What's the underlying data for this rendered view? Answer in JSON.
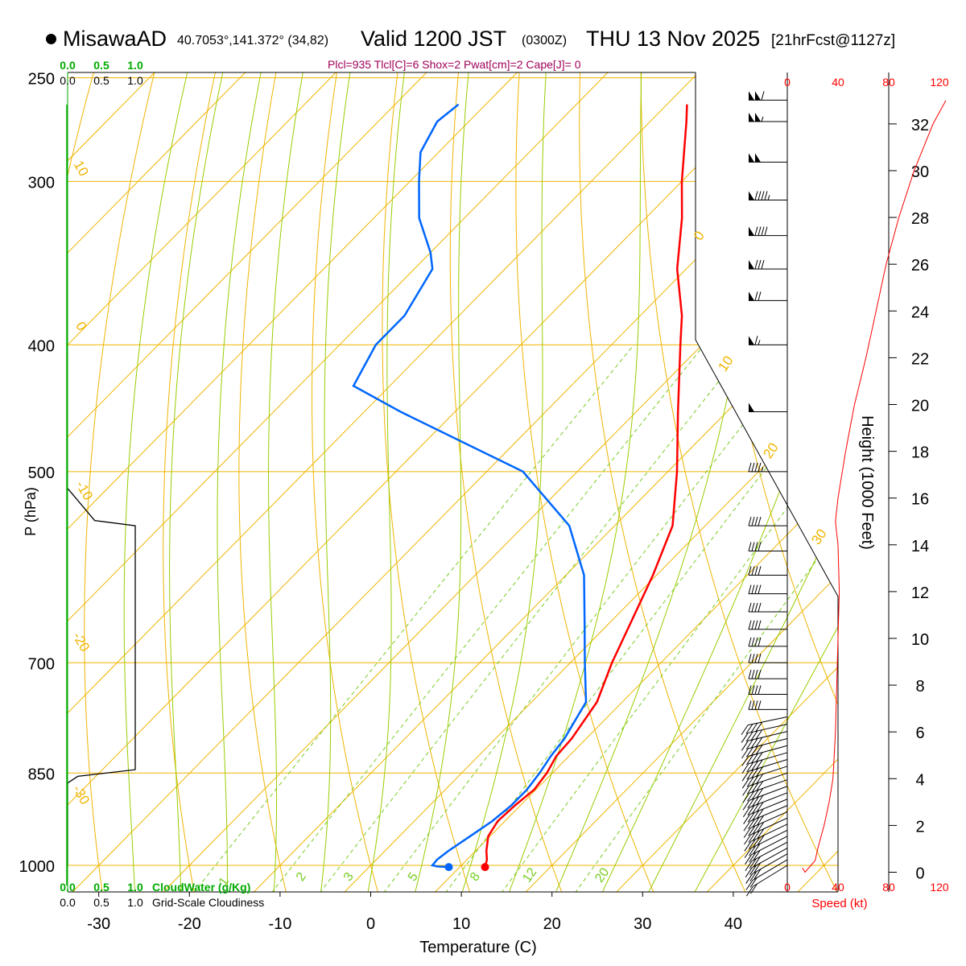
{
  "header": {
    "station": "MisawaAD",
    "coords": "40.7053°,141.372° (34,82)",
    "valid_main": "Valid 1200 JST",
    "valid_z": "(0300Z)",
    "valid_date": "THU 13 Nov 2025",
    "forecast": "[21hrFcst@1127z]",
    "indices": "Plcl=935 Tlcl[C]=6 Shox=2 Pwat[cm]=2 Cape[J]= 0"
  },
  "colors": {
    "temperature": "#ff0000",
    "dewpoint": "#0066ff",
    "isotherm": "#f0b400",
    "dry_adiabat": "#f0b400",
    "moist_adiabat": "#99cc00",
    "mixing_ratio": "#77cc22",
    "cloud_water": "#00aa00",
    "speed": "#ff0000",
    "cloudiness": "#000000"
  },
  "chart_data": {
    "type": "skew-t",
    "title": "MisawaAD Valid 1200 JST THU 13 Nov 2025",
    "xlabel": "Temperature (C)",
    "ylabel": "P (hPa)",
    "right_axis_label": "Height (1000 Feet)",
    "pressure_ticks": [
      250,
      300,
      400,
      500,
      700,
      850,
      1000
    ],
    "temperature_ticks": [
      -30,
      -20,
      -10,
      0,
      10,
      20,
      30,
      40
    ],
    "height_ticks_kft": [
      0,
      2,
      4,
      6,
      8,
      10,
      12,
      14,
      16,
      18,
      20,
      22,
      24,
      26,
      28,
      30,
      32
    ],
    "speed_ticks_kt": [
      0,
      40,
      80,
      120
    ],
    "speed_axis_label": "Speed (kt)",
    "cloud_water_ticks": [
      "0.0",
      "0.5",
      "1.0"
    ],
    "cloud_water_label": "CloudWater (g/Kg)",
    "cloudiness_ticks": [
      "0.0",
      "0.5",
      "1.0"
    ],
    "cloudiness_label": "Grid-Scale Cloudiness",
    "isotherm_labels": [
      10,
      0,
      10,
      20,
      30,
      0,
      -10,
      -20,
      -30
    ],
    "mixing_ratio_labels": [
      1,
      2,
      3,
      5,
      8,
      12,
      20
    ],
    "temperature_profile": [
      {
        "p": 1003,
        "t": 12.8
      },
      {
        "p": 990,
        "t": 12.2
      },
      {
        "p": 975,
        "t": 11.2
      },
      {
        "p": 950,
        "t": 9.8
      },
      {
        "p": 925,
        "t": 9.2
      },
      {
        "p": 900,
        "t": 9.4
      },
      {
        "p": 875,
        "t": 9.8
      },
      {
        "p": 850,
        "t": 9.4
      },
      {
        "p": 825,
        "t": 8.6
      },
      {
        "p": 800,
        "t": 8.4
      },
      {
        "p": 750,
        "t": 7.2
      },
      {
        "p": 700,
        "t": 4.6
      },
      {
        "p": 650,
        "t": 2.2
      },
      {
        "p": 600,
        "t": -0.4
      },
      {
        "p": 550,
        "t": -3.6
      },
      {
        "p": 500,
        "t": -9.0
      },
      {
        "p": 450,
        "t": -15.4
      },
      {
        "p": 400,
        "t": -22.4
      },
      {
        "p": 380,
        "t": -25.4
      },
      {
        "p": 350,
        "t": -31.0
      },
      {
        "p": 320,
        "t": -36.0
      },
      {
        "p": 300,
        "t": -40.0
      },
      {
        "p": 270,
        "t": -46.0
      },
      {
        "p": 262,
        "t": -47.8
      }
    ],
    "dewpoint_profile": [
      {
        "p": 1003,
        "t": 8.8
      },
      {
        "p": 1002,
        "t": 7.5
      },
      {
        "p": 1000,
        "t": 6.8
      },
      {
        "p": 990,
        "t": 6.7
      },
      {
        "p": 975,
        "t": 7.0
      },
      {
        "p": 950,
        "t": 7.8
      },
      {
        "p": 925,
        "t": 8.6
      },
      {
        "p": 900,
        "t": 9.0
      },
      {
        "p": 875,
        "t": 9.0
      },
      {
        "p": 850,
        "t": 8.6
      },
      {
        "p": 825,
        "t": 8.0
      },
      {
        "p": 800,
        "t": 7.6
      },
      {
        "p": 750,
        "t": 6.0
      },
      {
        "p": 700,
        "t": 1.6
      },
      {
        "p": 650,
        "t": -3.0
      },
      {
        "p": 600,
        "t": -8.0
      },
      {
        "p": 550,
        "t": -15.0
      },
      {
        "p": 500,
        "t": -26.0
      },
      {
        "p": 450,
        "t": -46.0
      },
      {
        "p": 430,
        "t": -54.0
      },
      {
        "p": 400,
        "t": -56.0
      },
      {
        "p": 380,
        "t": -56.0
      },
      {
        "p": 350,
        "t": -58.0
      },
      {
        "p": 340,
        "t": -60.0
      },
      {
        "p": 320,
        "t": -65.0
      },
      {
        "p": 300,
        "t": -69.0
      },
      {
        "p": 285,
        "t": -72.0
      },
      {
        "p": 270,
        "t": -73.5
      },
      {
        "p": 262,
        "t": -73.0
      }
    ],
    "wind_speed_profile_kt": [
      {
        "kft": 0.0,
        "s": 14
      },
      {
        "kft": 0.5,
        "s": 22
      },
      {
        "kft": 1.0,
        "s": 24
      },
      {
        "kft": 2.0,
        "s": 29
      },
      {
        "kft": 3.0,
        "s": 33
      },
      {
        "kft": 4.0,
        "s": 36
      },
      {
        "kft": 5.0,
        "s": 37
      },
      {
        "kft": 6.0,
        "s": 38
      },
      {
        "kft": 8.0,
        "s": 39
      },
      {
        "kft": 10.0,
        "s": 40
      },
      {
        "kft": 12.0,
        "s": 41
      },
      {
        "kft": 14.0,
        "s": 40
      },
      {
        "kft": 15.0,
        "s": 38
      },
      {
        "kft": 16.0,
        "s": 40
      },
      {
        "kft": 18.0,
        "s": 46
      },
      {
        "kft": 20.0,
        "s": 53
      },
      {
        "kft": 22.0,
        "s": 62
      },
      {
        "kft": 24.0,
        "s": 70
      },
      {
        "kft": 26.0,
        "s": 78
      },
      {
        "kft": 28.0,
        "s": 88
      },
      {
        "kft": 30.0,
        "s": 100
      },
      {
        "kft": 32.0,
        "s": 115
      },
      {
        "kft": 33.0,
        "s": 125
      }
    ],
    "cloudiness_profile": [
      {
        "p": 1000,
        "c": 0.0
      },
      {
        "p": 865,
        "c": 0.0
      },
      {
        "p": 855,
        "c": 0.15
      },
      {
        "p": 845,
        "c": 1.0
      },
      {
        "p": 550,
        "c": 1.0
      },
      {
        "p": 545,
        "c": 0.4
      },
      {
        "p": 515,
        "c": 0.0
      }
    ],
    "wind_barbs": [
      {
        "p": 1000,
        "kt": 20
      },
      {
        "p": 990,
        "kt": 22
      },
      {
        "p": 980,
        "kt": 25
      },
      {
        "p": 970,
        "kt": 25
      },
      {
        "p": 960,
        "kt": 30
      },
      {
        "p": 950,
        "kt": 30
      },
      {
        "p": 940,
        "kt": 30
      },
      {
        "p": 930,
        "kt": 35
      },
      {
        "p": 920,
        "kt": 35
      },
      {
        "p": 910,
        "kt": 35
      },
      {
        "p": 900,
        "kt": 35
      },
      {
        "p": 890,
        "kt": 35
      },
      {
        "p": 880,
        "kt": 35
      },
      {
        "p": 870,
        "kt": 35
      },
      {
        "p": 860,
        "kt": 35
      },
      {
        "p": 850,
        "kt": 35
      },
      {
        "p": 840,
        "kt": 35
      },
      {
        "p": 830,
        "kt": 35
      },
      {
        "p": 820,
        "kt": 35
      },
      {
        "p": 810,
        "kt": 35
      },
      {
        "p": 800,
        "kt": 35
      },
      {
        "p": 790,
        "kt": 35
      },
      {
        "p": 780,
        "kt": 35
      },
      {
        "p": 770,
        "kt": 35
      },
      {
        "p": 760,
        "kt": 40
      },
      {
        "p": 740,
        "kt": 40
      },
      {
        "p": 720,
        "kt": 40
      },
      {
        "p": 700,
        "kt": 40
      },
      {
        "p": 680,
        "kt": 40
      },
      {
        "p": 660,
        "kt": 40
      },
      {
        "p": 640,
        "kt": 40
      },
      {
        "p": 620,
        "kt": 40
      },
      {
        "p": 600,
        "kt": 40
      },
      {
        "p": 575,
        "kt": 40
      },
      {
        "p": 550,
        "kt": 40
      },
      {
        "p": 500,
        "kt": 45
      },
      {
        "p": 450,
        "kt": 50
      },
      {
        "p": 400,
        "kt": 65
      },
      {
        "p": 370,
        "kt": 70
      },
      {
        "p": 350,
        "kt": 80
      },
      {
        "p": 330,
        "kt": 90
      },
      {
        "p": 310,
        "kt": 95
      },
      {
        "p": 290,
        "kt": 100
      },
      {
        "p": 270,
        "kt": 105
      },
      {
        "p": 260,
        "kt": 110
      }
    ]
  }
}
